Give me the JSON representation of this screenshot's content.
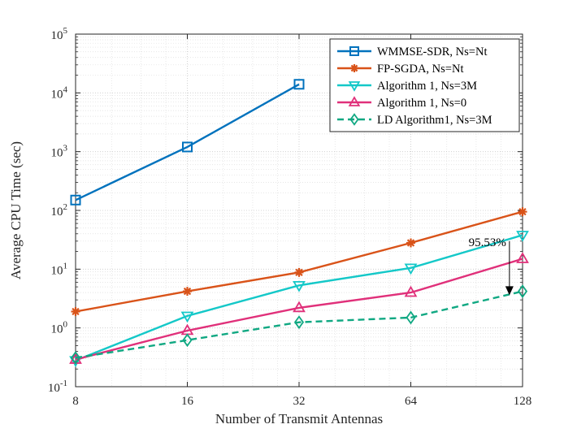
{
  "chart_data": {
    "type": "line",
    "title": "",
    "xlabel": "Number of Transmit Antennas",
    "ylabel": "Average CPU Time (sec)",
    "x": [
      8,
      16,
      32,
      64,
      128
    ],
    "x_scale": "log2",
    "y_scale": "log10",
    "xlim": [
      8,
      128
    ],
    "ylim": [
      0.1,
      100000
    ],
    "grid": true,
    "legend_position": "top-right",
    "x_ticks": [
      {
        "value": 8,
        "label": "8"
      },
      {
        "value": 16,
        "label": "16"
      },
      {
        "value": 32,
        "label": "32"
      },
      {
        "value": 64,
        "label": "64"
      },
      {
        "value": 128,
        "label": "128"
      }
    ],
    "y_ticks": [
      {
        "value": 0.1,
        "base": "10",
        "exp": "-1"
      },
      {
        "value": 1,
        "base": "10",
        "exp": "0"
      },
      {
        "value": 10,
        "base": "10",
        "exp": "1"
      },
      {
        "value": 100,
        "base": "10",
        "exp": "2"
      },
      {
        "value": 1000,
        "base": "10",
        "exp": "3"
      },
      {
        "value": 10000,
        "base": "10",
        "exp": "4"
      },
      {
        "value": 100000,
        "base": "10",
        "exp": "5"
      }
    ],
    "series": [
      {
        "name": "WMMSE-SDR, Ns=Nt",
        "color": "#0072BD",
        "marker": "square",
        "dash": "solid",
        "x": [
          8,
          16,
          32
        ],
        "values": [
          150,
          1200,
          14000
        ]
      },
      {
        "name": "FP-SGDA, Ns=Nt",
        "color": "#D95319",
        "marker": "star",
        "dash": "solid",
        "x": [
          8,
          16,
          32,
          64,
          128
        ],
        "values": [
          1.9,
          4.2,
          8.8,
          28,
          95
        ]
      },
      {
        "name": "Algorithm 1, Ns=3M",
        "color": "#14C8C8",
        "marker": "triangle-down",
        "dash": "solid",
        "x": [
          8,
          16,
          32,
          64,
          128
        ],
        "values": [
          0.28,
          1.6,
          5.3,
          10.5,
          38
        ]
      },
      {
        "name": "Algorithm 1, Ns=0",
        "color": "#E0307A",
        "marker": "triangle-up",
        "dash": "solid",
        "x": [
          8,
          16,
          32,
          64,
          128
        ],
        "values": [
          0.29,
          0.9,
          2.2,
          4.0,
          15
        ]
      },
      {
        "name": "LD Algorithm1, Ns=3M",
        "color": "#10A882",
        "marker": "diamond",
        "dash": "dashed",
        "x": [
          8,
          16,
          32,
          64,
          128
        ],
        "values": [
          0.31,
          0.62,
          1.25,
          1.5,
          4.2
        ]
      }
    ],
    "annotations": [
      {
        "text": "95.53%",
        "arrow": {
          "from_value": {
            "x": 118,
            "y": 30
          },
          "to_value": {
            "x": 118,
            "y": 3.6
          }
        }
      }
    ]
  }
}
